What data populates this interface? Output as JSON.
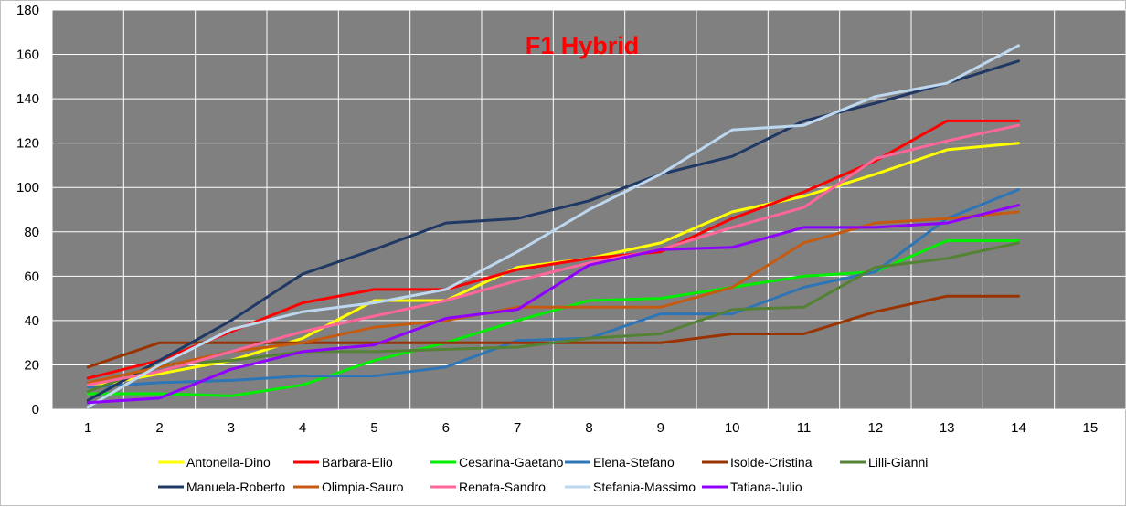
{
  "chart_data": {
    "type": "line",
    "title": "F1 Hybrid",
    "xlabel": "",
    "ylabel": "",
    "x": [
      1,
      2,
      3,
      4,
      5,
      6,
      7,
      8,
      9,
      10,
      11,
      12,
      13,
      14
    ],
    "x_ticks": [
      "1",
      "2",
      "3",
      "4",
      "5",
      "6",
      "7",
      "8",
      "9",
      "10",
      "11",
      "12",
      "13",
      "14",
      "15"
    ],
    "xlim": [
      0.5,
      15.5
    ],
    "ylim": [
      0,
      180
    ],
    "y_ticks": [
      "0",
      "20",
      "40",
      "60",
      "80",
      "100",
      "120",
      "140",
      "160",
      "180"
    ],
    "grid": true,
    "plot_background": "#808080",
    "grid_color": "#ffffff",
    "legend_position": "bottom",
    "series": [
      {
        "name": "Antonella-Dino",
        "color": "#ffff00",
        "values": [
          10,
          16,
          22,
          32,
          49,
          49,
          64,
          68,
          75,
          89,
          96,
          106,
          117,
          120
        ]
      },
      {
        "name": "Barbara-Elio",
        "color": "#ff0000",
        "values": [
          14,
          22,
          35,
          48,
          54,
          54,
          63,
          68,
          71,
          86,
          98,
          112,
          130,
          130
        ]
      },
      {
        "name": "Cesarina-Gaetano",
        "color": "#00ee00",
        "values": [
          7,
          7,
          6,
          11,
          22,
          30,
          40,
          49,
          50,
          55,
          60,
          62,
          76,
          76
        ]
      },
      {
        "name": "Elena-Stefano",
        "color": "#2e75b6",
        "values": [
          10,
          12,
          13,
          15,
          15,
          19,
          31,
          32,
          43,
          43,
          55,
          62,
          86,
          99
        ]
      },
      {
        "name": "Isolde-Cristina",
        "color": "#993300",
        "values": [
          19,
          30,
          30,
          30,
          30,
          30,
          30,
          30,
          30,
          34,
          34,
          44,
          51,
          51
        ]
      },
      {
        "name": "Lilli-Gianni",
        "color": "#548235",
        "values": [
          8,
          20,
          22,
          26,
          26,
          27,
          28,
          32,
          34,
          45,
          46,
          64,
          68,
          75
        ]
      },
      {
        "name": "Manuela-Roberto",
        "color": "#1f3864",
        "values": [
          4,
          22,
          40,
          61,
          72,
          84,
          86,
          94,
          106,
          114,
          130,
          138,
          147,
          157
        ]
      },
      {
        "name": "Olimpia-Sauro",
        "color": "#c55a11",
        "values": [
          12,
          19,
          26,
          30,
          37,
          40,
          46,
          46,
          46,
          55,
          75,
          84,
          86,
          89
        ]
      },
      {
        "name": "Renata-Sandro",
        "color": "#ff6699",
        "values": [
          11,
          17,
          26,
          35,
          42,
          49,
          58,
          66,
          72,
          82,
          91,
          113,
          121,
          128
        ]
      },
      {
        "name": "Stefania-Massimo",
        "color": "#bdd7ee",
        "values": [
          1,
          20,
          36,
          44,
          48,
          54,
          71,
          90,
          106,
          126,
          128,
          141,
          147,
          164
        ]
      },
      {
        "name": "Tatiana-Julio",
        "color": "#8f00ff",
        "values": [
          3,
          5,
          18,
          26,
          29,
          41,
          45,
          65,
          72,
          73,
          82,
          82,
          84,
          92
        ]
      }
    ]
  }
}
